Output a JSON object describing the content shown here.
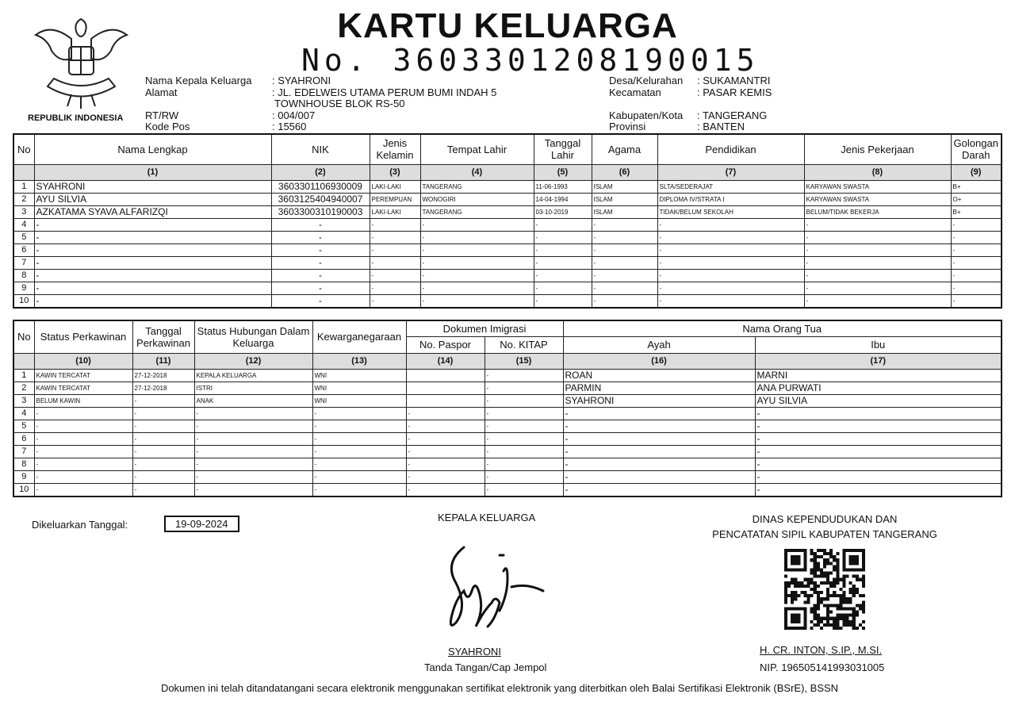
{
  "header": {
    "emblem_caption": "REPUBLIK INDONESIA",
    "emblem_motto": "BHINNEKA TUNGGAL IKA",
    "title": "KARTU KELUARGA",
    "number": "No. 3603301208190015"
  },
  "info_left": [
    {
      "label": "Nama Kepala Keluarga",
      "value": ": SYAHRONI"
    },
    {
      "label": "Alamat",
      "value": ": JL. EDELWEIS UTAMA PERUM BUMI INDAH 5"
    },
    {
      "label": "",
      "value": "TOWNHOUSE BLOK RS-50"
    },
    {
      "label": "RT/RW",
      "value": ": 004/007"
    },
    {
      "label": "Kode Pos",
      "value": ": 15560"
    }
  ],
  "info_right": [
    {
      "label": "Desa/Kelurahan",
      "value": ": SUKAMANTRI"
    },
    {
      "label": "Kecamatan",
      "value": ": PASAR KEMIS"
    },
    {
      "label": "Kabupaten/Kota",
      "value": ": TANGERANG"
    },
    {
      "label": "Provinsi",
      "value": ": BANTEN"
    }
  ],
  "table1": {
    "headers": [
      "No",
      "Nama Lengkap",
      "NIK",
      "Jenis Kelamin",
      "Tempat Lahir",
      "Tanggal Lahir",
      "Agama",
      "Pendidikan",
      "Jenis Pekerjaan",
      "Golongan Darah"
    ],
    "numbers": [
      "",
      "(1)",
      "(2)",
      "(3)",
      "(4)",
      "(5)",
      "(6)",
      "(7)",
      "(8)",
      "(9)"
    ],
    "rows": [
      [
        "1",
        "SYAHRONI",
        "3603301106930009",
        "LAKI-LAKI",
        "TANGERANG",
        "11-06-1993",
        "ISLAM",
        "SLTA/SEDERAJAT",
        "KARYAWAN SWASTA",
        "B+"
      ],
      [
        "2",
        "AYU SILVIA",
        "3603125404940007",
        "PEREMPUAN",
        "WONOGIRI",
        "14-04-1994",
        "ISLAM",
        "DIPLOMA IV/STRATA I",
        "KARYAWAN SWASTA",
        "O+"
      ],
      [
        "3",
        "AZKATAMA SYAVA ALFARIZQI",
        "3603300310190003",
        "LAKI-LAKI",
        "TANGERANG",
        "03-10-2019",
        "ISLAM",
        "TIDAK/BELUM SEKOLAH",
        "BELUM/TIDAK BEKERJA",
        "B+"
      ],
      [
        "4",
        "-",
        "-",
        "-",
        "-",
        "-",
        "-",
        "-",
        "-",
        "-"
      ],
      [
        "5",
        "-",
        "-",
        "-",
        "-",
        "-",
        "-",
        "-",
        "-",
        "-"
      ],
      [
        "6",
        "-",
        "-",
        "-",
        "-",
        "-",
        "-",
        "-",
        "-",
        "-"
      ],
      [
        "7",
        "-",
        "-",
        "-",
        "-",
        "-",
        "-",
        "-",
        "-",
        "-"
      ],
      [
        "8",
        "-",
        "-",
        "-",
        "-",
        "-",
        "-",
        "-",
        "-",
        "-"
      ],
      [
        "9",
        "-",
        "-",
        "-",
        "-",
        "-",
        "-",
        "-",
        "-",
        "-"
      ],
      [
        "10",
        "-",
        "-",
        "-",
        "-",
        "-",
        "-",
        "-",
        "-",
        "-"
      ]
    ]
  },
  "table2": {
    "headers": [
      "No",
      "Status Perkawinan",
      "Tanggal Perkawinan",
      "Status Hubungan Dalam Keluarga",
      "Kewarganegaraan",
      "Dokumen Imigrasi",
      "Nama Orang Tua"
    ],
    "subheaders": [
      "No. Paspor",
      "No. KITAP",
      "Ayah",
      "Ibu"
    ],
    "numbers": [
      "",
      "(10)",
      "(11)",
      "(12)",
      "(13)",
      "(14)",
      "(15)",
      "(16)",
      "(17)"
    ],
    "rows": [
      [
        "1",
        "KAWIN TERCATAT",
        "27-12-2018",
        "KEPALA KELUARGA",
        "WNI",
        "",
        "-",
        "ROAN",
        "MARNI"
      ],
      [
        "2",
        "KAWIN TERCATAT",
        "27-12-2018",
        "ISTRI",
        "WNI",
        "",
        "-",
        "PARMIN",
        "ANA PURWATI"
      ],
      [
        "3",
        "BELUM KAWIN",
        "-",
        "ANAK",
        "WNI",
        "",
        "-",
        "SYAHRONI",
        "AYU SILVIA"
      ],
      [
        "4",
        "-",
        "-",
        "-",
        "-",
        "-",
        "-",
        "-",
        "-"
      ],
      [
        "5",
        "-",
        "-",
        "-",
        "-",
        "-",
        "-",
        "-",
        "-"
      ],
      [
        "6",
        "-",
        "-",
        "-",
        "-",
        "-",
        "-",
        "-",
        "-"
      ],
      [
        "7",
        "-",
        "-",
        "-",
        "-",
        "-",
        "-",
        "-",
        "-"
      ],
      [
        "8",
        "-",
        "-",
        "-",
        "-",
        "-",
        "-",
        "-",
        "-"
      ],
      [
        "9",
        "-",
        "-",
        "-",
        "-",
        "-",
        "-",
        "-",
        "-"
      ],
      [
        "10",
        "-",
        "-",
        "-",
        "-",
        "-",
        "-",
        "-",
        "-"
      ]
    ]
  },
  "footer": {
    "issued_label": "Dikeluarkan Tanggal:",
    "issued_date": "19-09-2024",
    "head_title": "KEPALA KELUARGA",
    "head_name": "SYAHRONI",
    "head_caption": "Tanda Tangan/Cap Jempol",
    "office_line1": "DINAS KEPENDUDUKAN DAN",
    "office_line2": "PENCATATAN SIPIL KABUPATEN TANGERANG",
    "official_name": "H. CR. INTON, S.IP., M.SI.",
    "official_nip": "NIP. 196505141993031005",
    "note": "Dokumen ini telah ditandatangani secara elektronik menggunakan sertifikat elektronik yang diterbitkan oleh Balai Sertifikasi Elektronik (BSrE), BSSN"
  }
}
